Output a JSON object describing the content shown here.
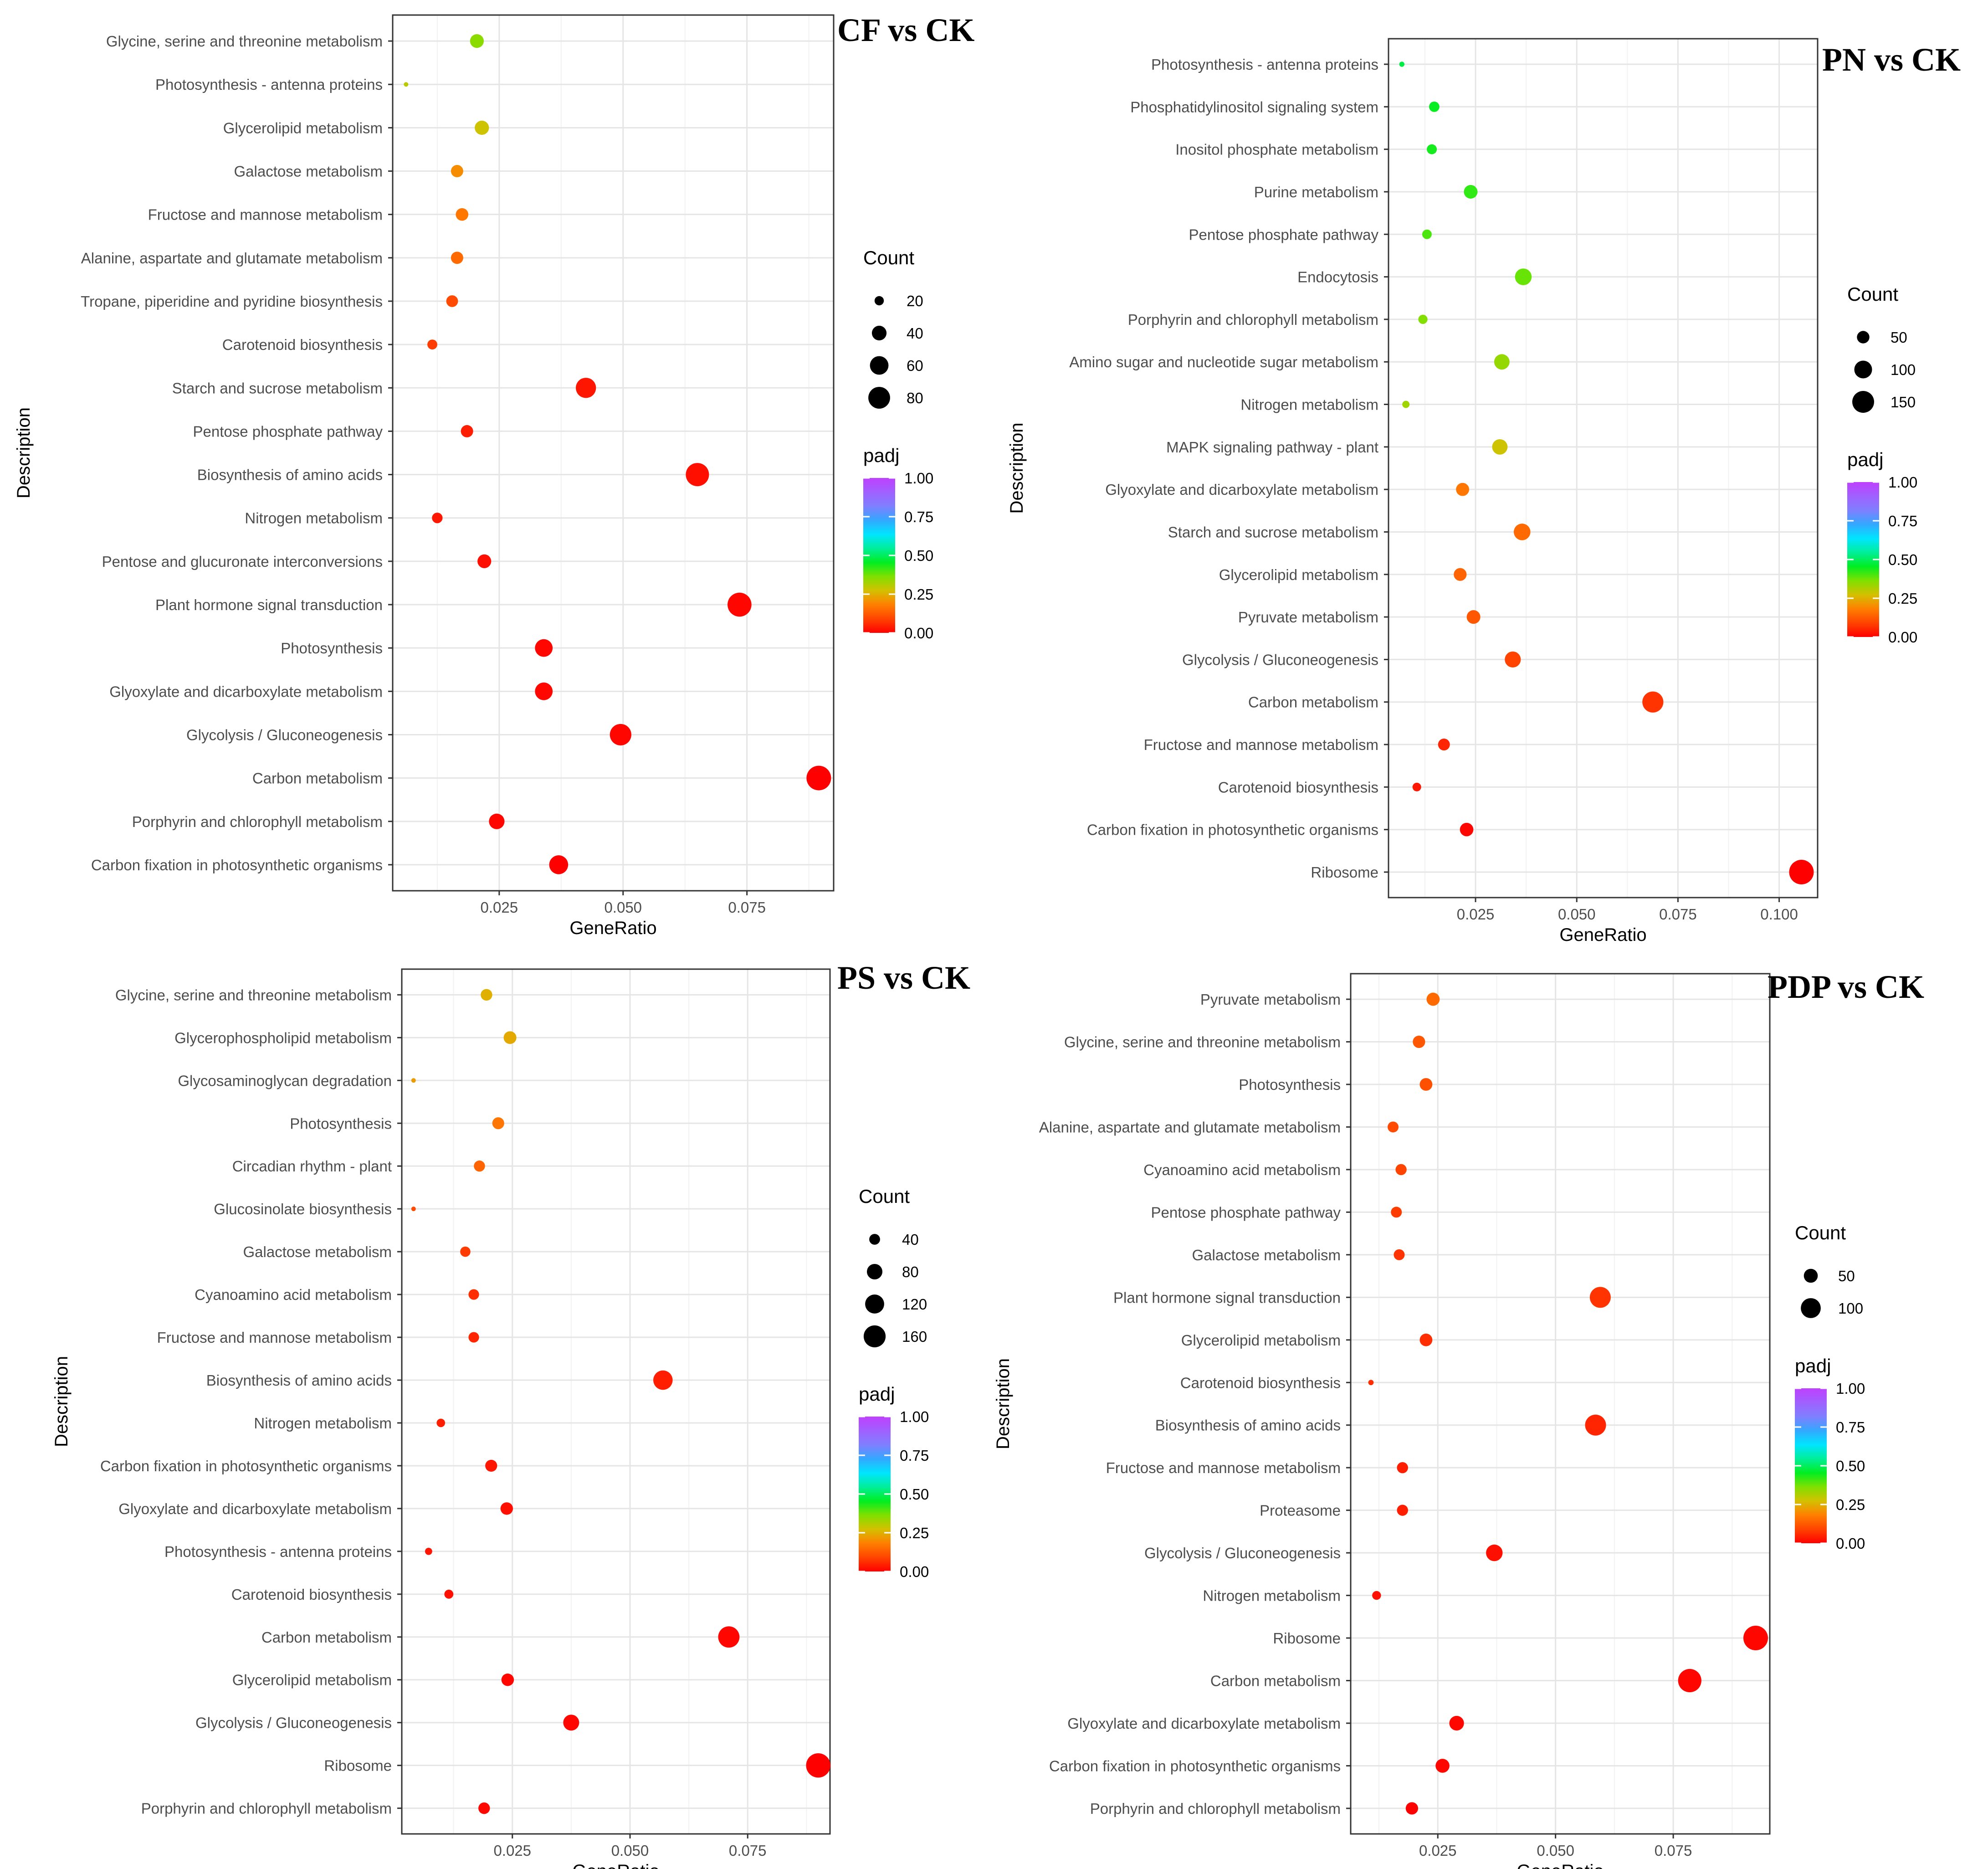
{
  "figure": {
    "padj_colormap": [
      "#ff0000",
      "#ff4400",
      "#ff7f00",
      "#d4c000",
      "#7fe000",
      "#00ee22",
      "#00ee99",
      "#00e5ff",
      "#33a8ff",
      "#7f7fff",
      "#a060ff",
      "#bf40ff"
    ]
  },
  "chart_data": [
    {
      "type": "scatter",
      "title": "CF vs CK",
      "xlabel": "GeneRatio",
      "ylabel": "Description",
      "xlim": [
        0.0035,
        0.0925
      ],
      "xticks": [
        0.025,
        0.05,
        0.075
      ],
      "xtick_labels": [
        "0.025",
        "0.050",
        "0.075"
      ],
      "size_legend": {
        "title": "Count",
        "values": [
          20,
          40,
          60,
          80
        ],
        "labels": [
          "20",
          "40",
          "60",
          "80"
        ],
        "range": [
          10,
          100
        ]
      },
      "color_legend": {
        "title": "padj",
        "ticks": [
          1.0,
          0.75,
          0.5,
          0.25,
          0.0
        ],
        "labels": [
          "1.00",
          "0.75",
          "0.50",
          "0.25",
          "0.00"
        ]
      },
      "points": [
        {
          "term": "Glycine, serine and threonine metabolism",
          "gene_ratio": 0.0205,
          "count": 36,
          "padj": 0.35
        },
        {
          "term": "Photosynthesis - antenna proteins",
          "gene_ratio": 0.0062,
          "count": 10,
          "padj": 0.3
        },
        {
          "term": "Glycerolipid metabolism",
          "gene_ratio": 0.0215,
          "count": 38,
          "padj": 0.28
        },
        {
          "term": "Galactose metabolism",
          "gene_ratio": 0.0165,
          "count": 30,
          "padj": 0.2
        },
        {
          "term": "Fructose and mannose metabolism",
          "gene_ratio": 0.0175,
          "count": 31,
          "padj": 0.17
        },
        {
          "term": "Alanine, aspartate and glutamate metabolism",
          "gene_ratio": 0.0165,
          "count": 30,
          "padj": 0.15
        },
        {
          "term": "Tropane, piperidine and pyridine biosynthesis",
          "gene_ratio": 0.0155,
          "count": 28,
          "padj": 0.1
        },
        {
          "term": "Carotenoid biosynthesis",
          "gene_ratio": 0.0115,
          "count": 22,
          "padj": 0.08
        },
        {
          "term": "Starch and sucrose metabolism",
          "gene_ratio": 0.0425,
          "count": 70,
          "padj": 0.03
        },
        {
          "term": "Pentose phosphate pathway",
          "gene_ratio": 0.0185,
          "count": 30,
          "padj": 0.04
        },
        {
          "term": "Biosynthesis of amino acids",
          "gene_ratio": 0.065,
          "count": 90,
          "padj": 0.02
        },
        {
          "term": "Nitrogen metabolism",
          "gene_ratio": 0.0125,
          "count": 24,
          "padj": 0.03
        },
        {
          "term": "Pentose and glucuronate interconversions",
          "gene_ratio": 0.022,
          "count": 36,
          "padj": 0.02
        },
        {
          "term": "Plant hormone signal transduction",
          "gene_ratio": 0.0735,
          "count": 95,
          "padj": 0.01
        },
        {
          "term": "Photosynthesis",
          "gene_ratio": 0.034,
          "count": 55,
          "padj": 0.01
        },
        {
          "term": "Glyoxylate and dicarboxylate metabolism",
          "gene_ratio": 0.034,
          "count": 55,
          "padj": 0.01
        },
        {
          "term": "Glycolysis / Gluconeogenesis",
          "gene_ratio": 0.0495,
          "count": 78,
          "padj": 0.01
        },
        {
          "term": "Carbon metabolism",
          "gene_ratio": 0.0895,
          "count": 105,
          "padj": 0.0
        },
        {
          "term": "Porphyrin and chlorophyll metabolism",
          "gene_ratio": 0.0245,
          "count": 44,
          "padj": 0.01
        },
        {
          "term": "Carbon fixation in photosynthetic organisms",
          "gene_ratio": 0.037,
          "count": 62,
          "padj": 0.0
        }
      ]
    },
    {
      "type": "scatter",
      "title": "PN vs CK",
      "xlabel": "GeneRatio",
      "ylabel": "Description",
      "xlim": [
        0.0035,
        0.1095
      ],
      "xticks": [
        0.025,
        0.05,
        0.075,
        0.1
      ],
      "xtick_labels": [
        "0.025",
        "0.050",
        "0.075",
        "0.100"
      ],
      "size_legend": {
        "title": "Count",
        "values": [
          50,
          100,
          150
        ],
        "labels": [
          "50",
          "100",
          "150"
        ],
        "range": [
          8,
          190
        ]
      },
      "color_legend": {
        "title": "padj",
        "ticks": [
          1.0,
          0.75,
          0.5,
          0.25,
          0.0
        ],
        "labels": [
          "1.00",
          "0.75",
          "0.50",
          "0.25",
          "0.00"
        ]
      },
      "points": [
        {
          "term": "Photosynthesis - antenna proteins",
          "gene_ratio": 0.0068,
          "count": 10,
          "padj": 0.48
        },
        {
          "term": "Phosphatidylinositol signaling system",
          "gene_ratio": 0.0148,
          "count": 35,
          "padj": 0.45
        },
        {
          "term": "Inositol phosphate metabolism",
          "gene_ratio": 0.0142,
          "count": 33,
          "padj": 0.44
        },
        {
          "term": "Purine metabolism",
          "gene_ratio": 0.0238,
          "count": 60,
          "padj": 0.42
        },
        {
          "term": "Pentose phosphate pathway",
          "gene_ratio": 0.013,
          "count": 30,
          "padj": 0.4
        },
        {
          "term": "Endocytosis",
          "gene_ratio": 0.0368,
          "count": 88,
          "padj": 0.38
        },
        {
          "term": "Porphyrin and chlorophyll metabolism",
          "gene_ratio": 0.012,
          "count": 28,
          "padj": 0.36
        },
        {
          "term": "Amino sugar and nucleotide sugar metabolism",
          "gene_ratio": 0.0315,
          "count": 75,
          "padj": 0.34
        },
        {
          "term": "Nitrogen metabolism",
          "gene_ratio": 0.0078,
          "count": 18,
          "padj": 0.33
        },
        {
          "term": "MAPK signaling pathway - plant",
          "gene_ratio": 0.031,
          "count": 75,
          "padj": 0.28
        },
        {
          "term": "Glyoxylate and dicarboxylate metabolism",
          "gene_ratio": 0.0218,
          "count": 55,
          "padj": 0.17
        },
        {
          "term": "Starch and sucrose metabolism",
          "gene_ratio": 0.0365,
          "count": 88,
          "padj": 0.15
        },
        {
          "term": "Glycerolipid metabolism",
          "gene_ratio": 0.0212,
          "count": 53,
          "padj": 0.14
        },
        {
          "term": "Pyruvate metabolism",
          "gene_ratio": 0.0245,
          "count": 60,
          "padj": 0.12
        },
        {
          "term": "Glycolysis / Gluconeogenesis",
          "gene_ratio": 0.0342,
          "count": 82,
          "padj": 0.09
        },
        {
          "term": "Carbon metabolism",
          "gene_ratio": 0.0688,
          "count": 140,
          "padj": 0.07
        },
        {
          "term": "Fructose and mannose metabolism",
          "gene_ratio": 0.0172,
          "count": 45,
          "padj": 0.05
        },
        {
          "term": "Carotenoid biosynthesis",
          "gene_ratio": 0.0105,
          "count": 25,
          "padj": 0.03
        },
        {
          "term": "Carbon fixation in photosynthetic organisms",
          "gene_ratio": 0.0228,
          "count": 58,
          "padj": 0.01
        },
        {
          "term": "Ribosome",
          "gene_ratio": 0.1055,
          "count": 190,
          "padj": 0.0
        }
      ]
    },
    {
      "type": "scatter",
      "title": "PS vs CK",
      "xlabel": "GeneRatio",
      "ylabel": "Description",
      "xlim": [
        0.0015,
        0.0925
      ],
      "xticks": [
        0.025,
        0.05,
        0.075
      ],
      "xtick_labels": [
        "0.025",
        "0.050",
        "0.075"
      ],
      "size_legend": {
        "title": "Count",
        "values": [
          40,
          80,
          120,
          160
        ],
        "labels": [
          "40",
          "80",
          "120",
          "160"
        ],
        "range": [
          8,
          200
        ]
      },
      "color_legend": {
        "title": "padj",
        "ticks": [
          1.0,
          0.75,
          0.5,
          0.25,
          0.0
        ],
        "labels": [
          "1.00",
          "0.75",
          "0.50",
          "0.25",
          "0.00"
        ]
      },
      "points": [
        {
          "term": "Glycine, serine and threonine metabolism",
          "gene_ratio": 0.0195,
          "count": 45,
          "padj": 0.25
        },
        {
          "term": "Glycerophospholipid metabolism",
          "gene_ratio": 0.0245,
          "count": 55,
          "padj": 0.24
        },
        {
          "term": "Glycosaminoglycan degradation",
          "gene_ratio": 0.004,
          "count": 8,
          "padj": 0.22
        },
        {
          "term": "Photosynthesis",
          "gene_ratio": 0.022,
          "count": 48,
          "padj": 0.17
        },
        {
          "term": "Circadian rhythm - plant",
          "gene_ratio": 0.018,
          "count": 42,
          "padj": 0.14
        },
        {
          "term": "Glucosinolate biosynthesis",
          "gene_ratio": 0.004,
          "count": 8,
          "padj": 0.1
        },
        {
          "term": "Galactose metabolism",
          "gene_ratio": 0.015,
          "count": 36,
          "padj": 0.08
        },
        {
          "term": "Cyanoamino acid metabolism",
          "gene_ratio": 0.0168,
          "count": 38,
          "padj": 0.06
        },
        {
          "term": "Fructose and mannose metabolism",
          "gene_ratio": 0.0168,
          "count": 38,
          "padj": 0.05
        },
        {
          "term": "Biosynthesis of amino acids",
          "gene_ratio": 0.057,
          "count": 125,
          "padj": 0.04
        },
        {
          "term": "Nitrogen metabolism",
          "gene_ratio": 0.0098,
          "count": 25,
          "padj": 0.04
        },
        {
          "term": "Carbon fixation in photosynthetic organisms",
          "gene_ratio": 0.0205,
          "count": 48,
          "padj": 0.03
        },
        {
          "term": "Glyoxylate and dicarboxylate metabolism",
          "gene_ratio": 0.0238,
          "count": 52,
          "padj": 0.02
        },
        {
          "term": "Photosynthesis - antenna proteins",
          "gene_ratio": 0.0072,
          "count": 18,
          "padj": 0.03
        },
        {
          "term": "Carotenoid biosynthesis",
          "gene_ratio": 0.0115,
          "count": 28,
          "padj": 0.02
        },
        {
          "term": "Carbon metabolism",
          "gene_ratio": 0.071,
          "count": 150,
          "padj": 0.01
        },
        {
          "term": "Glycerolipid metabolism",
          "gene_ratio": 0.024,
          "count": 52,
          "padj": 0.01
        },
        {
          "term": "Glycolysis / Gluconeogenesis",
          "gene_ratio": 0.0375,
          "count": 85,
          "padj": 0.01
        },
        {
          "term": "Ribosome",
          "gene_ratio": 0.09,
          "count": 195,
          "padj": 0.0
        },
        {
          "term": "Porphyrin and chlorophyll metabolism",
          "gene_ratio": 0.019,
          "count": 45,
          "padj": 0.01
        }
      ]
    },
    {
      "type": "scatter",
      "title": "PDP vs CK",
      "xlabel": "GeneRatio",
      "ylabel": "Description",
      "xlim": [
        0.0065,
        0.0955
      ],
      "xticks": [
        0.025,
        0.05,
        0.075
      ],
      "xtick_labels": [
        "0.025",
        "0.050",
        "0.075"
      ],
      "size_legend": {
        "title": "Count",
        "values": [
          50,
          100
        ],
        "labels": [
          "50",
          "100"
        ],
        "range": [
          8,
          150
        ]
      },
      "color_legend": {
        "title": "padj",
        "ticks": [
          1.0,
          0.75,
          0.5,
          0.25,
          0.0
        ],
        "labels": [
          "1.00",
          "0.75",
          "0.50",
          "0.25",
          "0.00"
        ]
      },
      "points": [
        {
          "term": "Pyruvate metabolism",
          "gene_ratio": 0.024,
          "count": 45,
          "padj": 0.15
        },
        {
          "term": "Glycine, serine and threonine metabolism",
          "gene_ratio": 0.021,
          "count": 40,
          "padj": 0.12
        },
        {
          "term": "Photosynthesis",
          "gene_ratio": 0.0225,
          "count": 42,
          "padj": 0.11
        },
        {
          "term": "Alanine, aspartate and glutamate metabolism",
          "gene_ratio": 0.0155,
          "count": 32,
          "padj": 0.1
        },
        {
          "term": "Cyanoamino acid metabolism",
          "gene_ratio": 0.0172,
          "count": 33,
          "padj": 0.09
        },
        {
          "term": "Pentose phosphate pathway",
          "gene_ratio": 0.0162,
          "count": 32,
          "padj": 0.08
        },
        {
          "term": "Galactose metabolism",
          "gene_ratio": 0.0168,
          "count": 32,
          "padj": 0.07
        },
        {
          "term": "Plant hormone signal transduction",
          "gene_ratio": 0.0595,
          "count": 110,
          "padj": 0.07
        },
        {
          "term": "Glycerolipid metabolism",
          "gene_ratio": 0.0225,
          "count": 42,
          "padj": 0.06
        },
        {
          "term": "Carotenoid biosynthesis",
          "gene_ratio": 0.0108,
          "count": 10,
          "padj": 0.06
        },
        {
          "term": "Biosynthesis of amino acids",
          "gene_ratio": 0.0585,
          "count": 110,
          "padj": 0.05
        },
        {
          "term": "Fructose and mannose metabolism",
          "gene_ratio": 0.0175,
          "count": 33,
          "padj": 0.04
        },
        {
          "term": "Proteasome",
          "gene_ratio": 0.0175,
          "count": 33,
          "padj": 0.04
        },
        {
          "term": "Glycolysis / Gluconeogenesis",
          "gene_ratio": 0.037,
          "count": 70,
          "padj": 0.02
        },
        {
          "term": "Nitrogen metabolism",
          "gene_ratio": 0.012,
          "count": 22,
          "padj": 0.02
        },
        {
          "term": "Ribosome",
          "gene_ratio": 0.0925,
          "count": 150,
          "padj": 0.01
        },
        {
          "term": "Carbon metabolism",
          "gene_ratio": 0.0785,
          "count": 135,
          "padj": 0.01
        },
        {
          "term": "Glyoxylate and dicarboxylate metabolism",
          "gene_ratio": 0.029,
          "count": 55,
          "padj": 0.01
        },
        {
          "term": "Carbon fixation in photosynthetic organisms",
          "gene_ratio": 0.026,
          "count": 50,
          "padj": 0.01
        },
        {
          "term": "Porphyrin and chlorophyll metabolism",
          "gene_ratio": 0.0195,
          "count": 40,
          "padj": 0.0
        }
      ]
    }
  ]
}
